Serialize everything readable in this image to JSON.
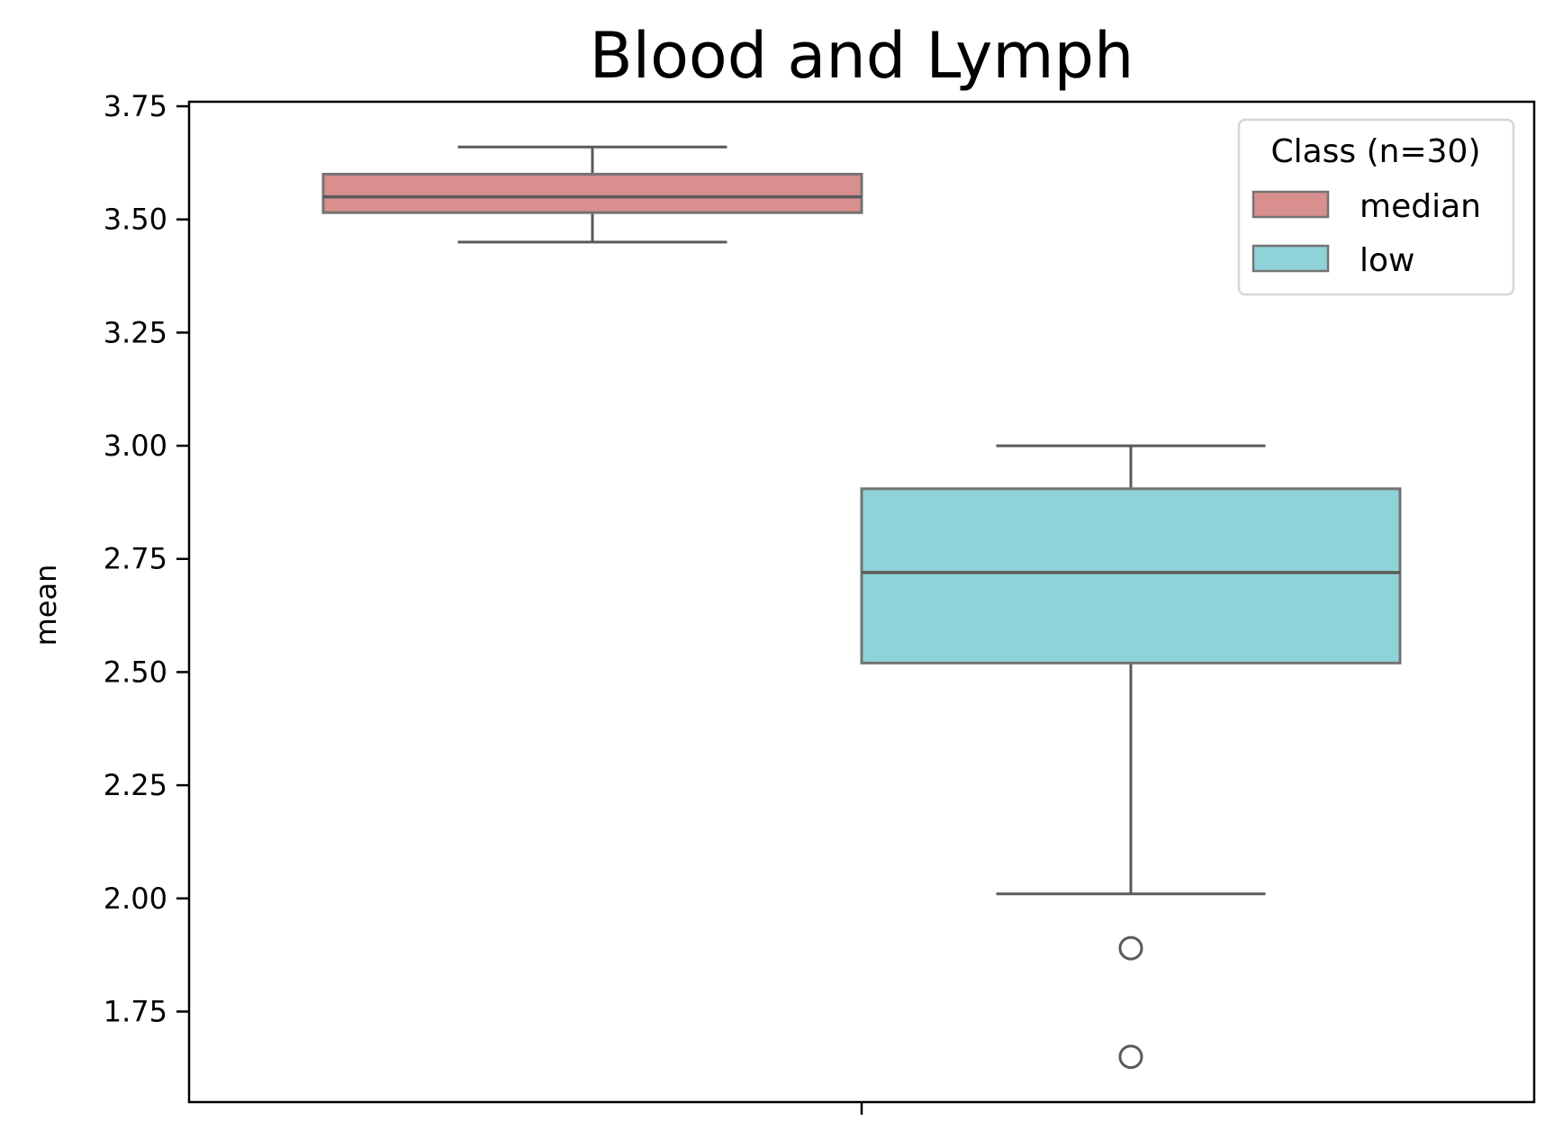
{
  "chart_data": {
    "type": "box",
    "title": "Blood and Lymph",
    "xlabel": "",
    "ylabel": "mean",
    "ylim": [
      1.55,
      3.76
    ],
    "yticks": [
      "1.75",
      "2.00",
      "2.25",
      "2.50",
      "2.75",
      "3.00",
      "3.25",
      "3.50",
      "3.75"
    ],
    "grid": false,
    "legend": {
      "title": "Class (n=30)",
      "placement": "top-right",
      "entries": [
        "median",
        "low"
      ]
    },
    "series": [
      {
        "name": "median",
        "color": "#d88f8d",
        "whisker_low": 3.45,
        "q1": 3.515,
        "median": 3.55,
        "q3": 3.6,
        "whisker_high": 3.66,
        "outliers": []
      },
      {
        "name": "low",
        "color": "#8fd3d9",
        "whisker_low": 2.01,
        "q1": 2.52,
        "median": 2.72,
        "q3": 2.905,
        "whisker_high": 3.0,
        "outliers": [
          1.89,
          1.65
        ]
      }
    ]
  }
}
